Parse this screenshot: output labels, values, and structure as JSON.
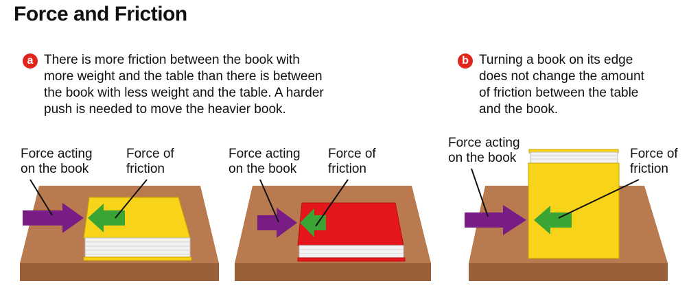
{
  "title": "Force and Friction",
  "part_a": {
    "badge": "a",
    "caption_lines": [
      "There is more friction between the book with",
      "more weight and the table than there is between",
      "the book with less weight and the table. A harder",
      "push is needed to move the heavier book."
    ]
  },
  "part_b": {
    "badge": "b",
    "caption_lines": [
      "Turning a book on its edge",
      "does not change the amount",
      "of friction between the table",
      "and the book."
    ]
  },
  "scenes": [
    {
      "force_label": [
        "Force acting",
        "on the book"
      ],
      "friction_label": [
        "Force of",
        "friction"
      ]
    },
    {
      "force_label": [
        "Force acting",
        "on the book"
      ],
      "friction_label": [
        "Force of",
        "friction"
      ]
    },
    {
      "force_label": [
        "Force acting",
        "on the book"
      ],
      "friction_label": [
        "Force of",
        "friction"
      ]
    }
  ],
  "colors": {
    "table_top": "#b97a4f",
    "table_side": "#9a6138",
    "book_yellow": "#f7d31a",
    "book_red": "#e4161c",
    "pages": "#f2f2f2",
    "push_arrow": "#7a1c86",
    "friction_arrow": "#3aa535",
    "badge": "#e0261c"
  }
}
